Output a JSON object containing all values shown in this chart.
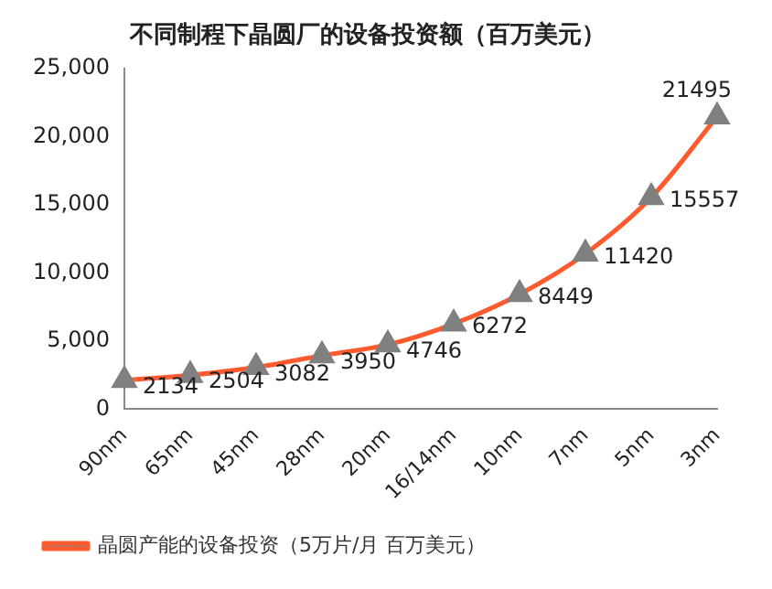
{
  "chart_data": {
    "type": "line",
    "title": "不同制程下晶圆厂的设备投资额（百万美元）",
    "categories": [
      "90nm",
      "65nm",
      "45nm",
      "28nm",
      "20nm",
      "16/14nm",
      "10nm",
      "7nm",
      "5nm",
      "3nm"
    ],
    "series": [
      {
        "name": "晶圆产能的设备投资（5万片/月 百万美元）",
        "color": "#ff5b2e",
        "values": [
          2134,
          2504,
          3082,
          3950,
          4746,
          6272,
          8449,
          11420,
          15557,
          21495
        ]
      }
    ],
    "ylim": [
      0,
      25000
    ],
    "yticks": [
      0,
      {
        "value": 5000,
        "label": "5,000"
      },
      {
        "value": 10000,
        "label": "10,000"
      },
      {
        "value": 15000,
        "label": "15,000"
      },
      {
        "value": 20000,
        "label": "20,000"
      },
      {
        "value": 25000,
        "label": "25,000"
      }
    ],
    "data_labels": true,
    "grid": false,
    "legend": "bottom left",
    "marker": "triangle",
    "line_style": "solid"
  }
}
